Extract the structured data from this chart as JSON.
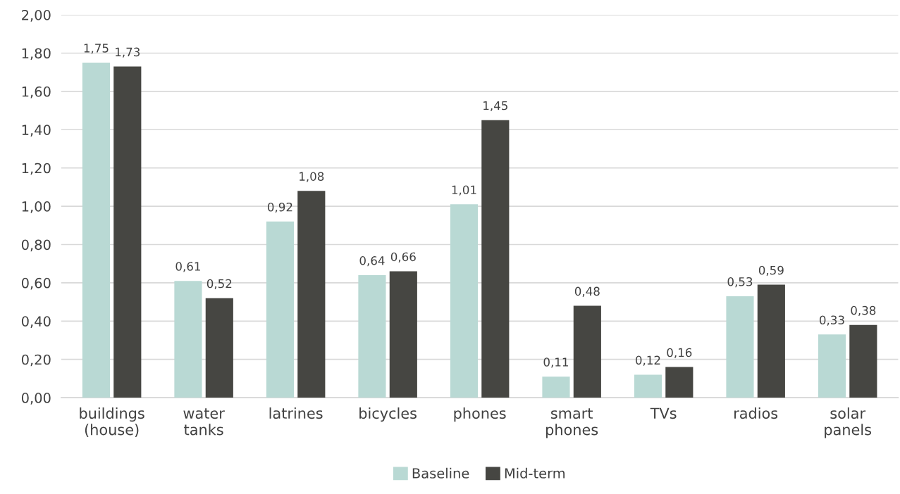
{
  "chart_data": {
    "type": "bar",
    "categories": [
      "buildings\n(house)",
      "water\ntanks",
      "latrines",
      "bicycles",
      "phones",
      "smart\nphones",
      "TVs",
      "radios",
      "solar\npanels"
    ],
    "series": [
      {
        "name": "Baseline",
        "color": "#b9d9d4",
        "values": [
          1.75,
          0.61,
          0.92,
          0.64,
          1.01,
          0.11,
          0.12,
          0.53,
          0.33
        ],
        "value_labels": [
          "1,75",
          "0,61",
          "0,92",
          "0,64",
          "1,01",
          "0,11",
          "0,12",
          "0,53",
          "0,33"
        ]
      },
      {
        "name": "Mid-term",
        "color": "#464642",
        "values": [
          1.73,
          0.52,
          1.08,
          0.66,
          1.45,
          0.48,
          0.16,
          0.59,
          0.38
        ],
        "value_labels": [
          "1,73",
          "0,52",
          "1,08",
          "0,66",
          "1,45",
          "0,48",
          "0,16",
          "0,59",
          "0,38"
        ]
      }
    ],
    "ylim": [
      0,
      2
    ],
    "yticks": [
      {
        "value": 0,
        "label": "0,00"
      },
      {
        "value": 0.2,
        "label": "0,20"
      },
      {
        "value": 0.4,
        "label": "0,40"
      },
      {
        "value": 0.6,
        "label": "0,60"
      },
      {
        "value": 0.8,
        "label": "0,80"
      },
      {
        "value": 1.0,
        "label": "1,00"
      },
      {
        "value": 1.2,
        "label": "1,20"
      },
      {
        "value": 1.4,
        "label": "1,40"
      },
      {
        "value": 1.6,
        "label": "1,60"
      },
      {
        "value": 1.8,
        "label": "1,80"
      },
      {
        "value": 2.0,
        "label": "2,00"
      }
    ],
    "grid": "y",
    "legend": "bottom"
  }
}
